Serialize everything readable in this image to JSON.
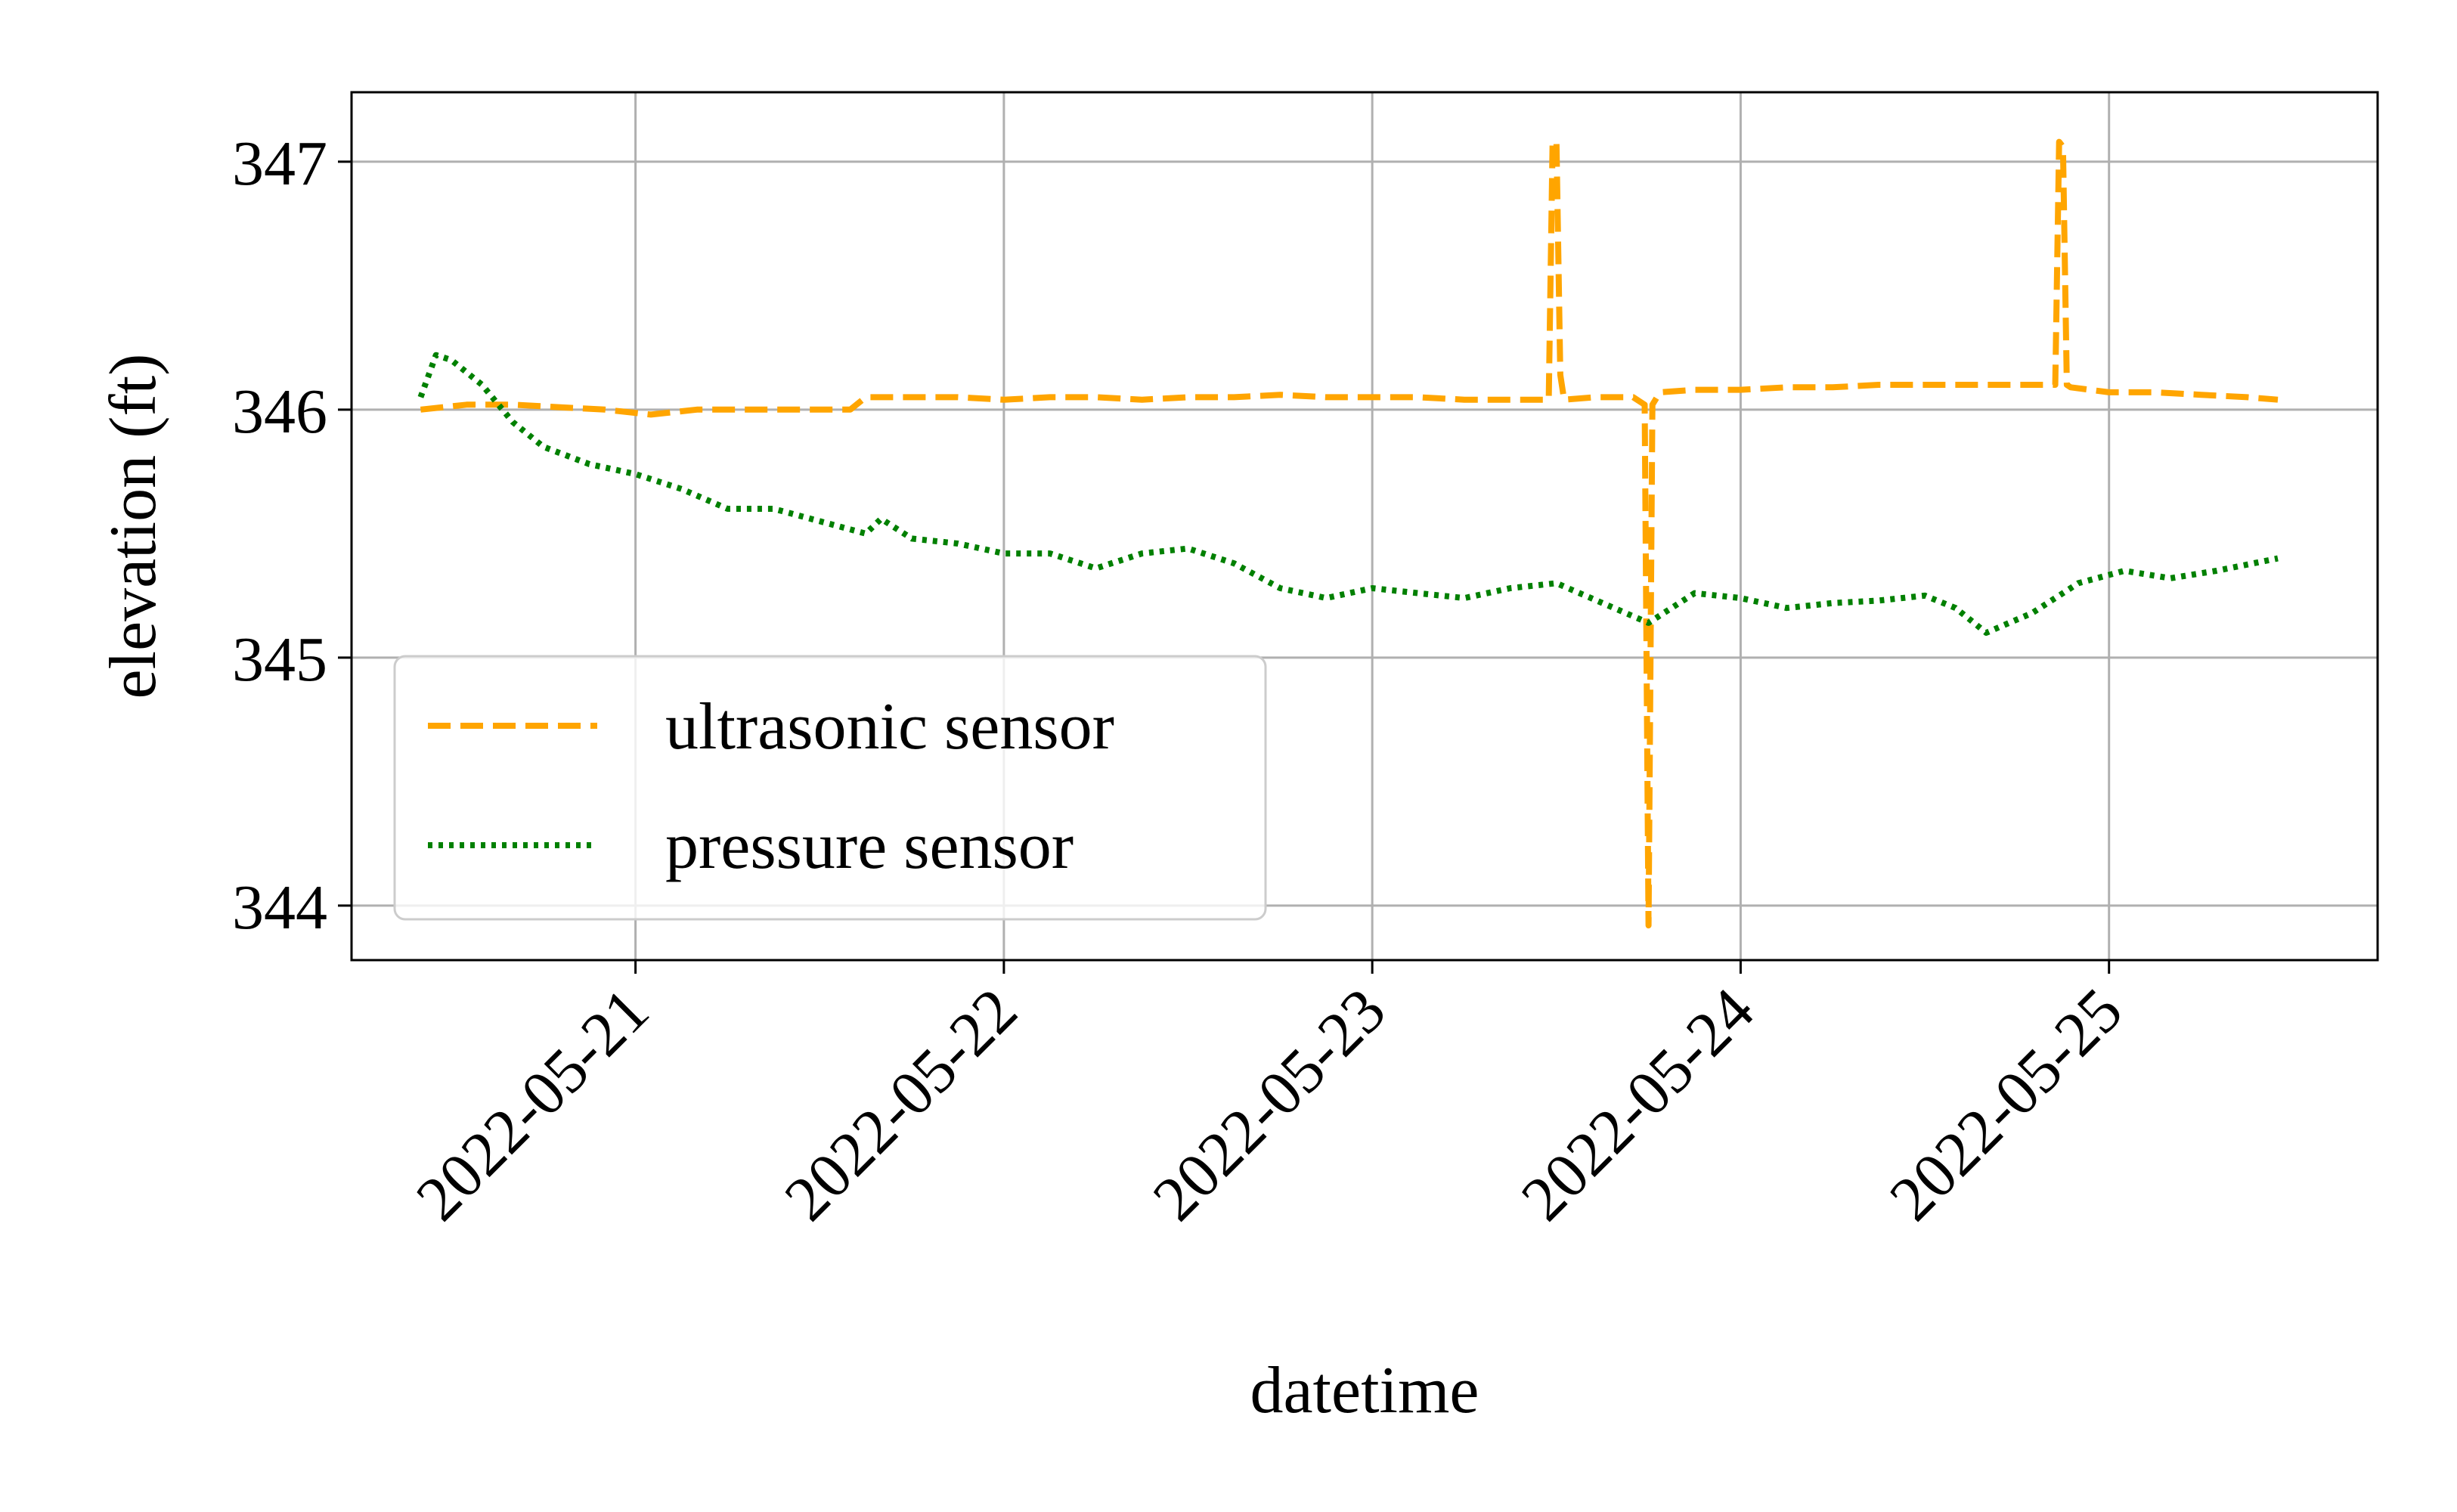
{
  "chart_data": {
    "type": "line",
    "title": "",
    "xlabel": "datetime",
    "ylabel": "elevation (ft)",
    "x_type": "datetime",
    "xlim": [
      "2022-05-20T05:30",
      "2022-05-25T17:30"
    ],
    "ylim": [
      343.78,
      347.28
    ],
    "x_ticks": [
      "2022-05-21",
      "2022-05-22",
      "2022-05-23",
      "2022-05-24",
      "2022-05-25"
    ],
    "y_ticks": [
      344,
      345,
      346,
      347
    ],
    "grid": true,
    "legend_position": "lower-left",
    "series": [
      {
        "name": "ultrasonic sensor",
        "color": "#ffa500",
        "line_style": "dashed",
        "x": [
          "2022-05-20T10:00",
          "2022-05-20T13:00",
          "2022-05-20T16:00",
          "2022-05-20T19:00",
          "2022-05-20T22:00",
          "2022-05-21T01:00",
          "2022-05-21T04:00",
          "2022-05-21T07:00",
          "2022-05-21T10:00",
          "2022-05-21T13:00",
          "2022-05-21T14:00",
          "2022-05-21T15:00",
          "2022-05-21T18:00",
          "2022-05-21T21:00",
          "2022-05-22T00:00",
          "2022-05-22T03:00",
          "2022-05-22T06:00",
          "2022-05-22T09:00",
          "2022-05-22T12:00",
          "2022-05-22T15:00",
          "2022-05-22T18:00",
          "2022-05-22T21:00",
          "2022-05-23T00:00",
          "2022-05-23T03:00",
          "2022-05-23T06:00",
          "2022-05-23T09:00",
          "2022-05-23T11:30",
          "2022-05-23T11:45",
          "2022-05-23T12:00",
          "2022-05-23T12:15",
          "2022-05-23T12:30",
          "2022-05-23T14:30",
          "2022-05-23T17:00",
          "2022-05-23T17:45",
          "2022-05-23T18:00",
          "2022-05-23T18:15",
          "2022-05-23T18:45",
          "2022-05-23T21:00",
          "2022-05-24T00:00",
          "2022-05-24T03:00",
          "2022-05-24T06:00",
          "2022-05-24T09:00",
          "2022-05-24T12:00",
          "2022-05-24T15:00",
          "2022-05-24T18:00",
          "2022-05-24T20:30",
          "2022-05-24T20:45",
          "2022-05-24T21:00",
          "2022-05-24T21:15",
          "2022-05-24T21:30",
          "2022-05-25T00:00",
          "2022-05-25T03:00",
          "2022-05-25T06:00",
          "2022-05-25T09:00",
          "2022-05-25T11:00"
        ],
        "y": [
          346.0,
          346.02,
          346.02,
          346.01,
          346.0,
          345.98,
          346.0,
          346.0,
          346.0,
          346.0,
          346.0,
          346.05,
          346.05,
          346.05,
          346.04,
          346.05,
          346.05,
          346.04,
          346.05,
          346.05,
          346.06,
          346.05,
          346.05,
          346.05,
          346.04,
          346.04,
          346.04,
          347.08,
          347.08,
          346.14,
          346.04,
          346.05,
          346.05,
          346.02,
          343.92,
          346.02,
          346.07,
          346.08,
          346.08,
          346.09,
          346.09,
          346.1,
          346.1,
          346.1,
          346.1,
          346.1,
          347.08,
          347.06,
          346.1,
          346.09,
          346.07,
          346.07,
          346.06,
          346.05,
          346.04
        ]
      },
      {
        "name": "pressure sensor",
        "color": "#008000",
        "line_style": "dotted",
        "x": [
          "2022-05-20T10:00",
          "2022-05-20T11:00",
          "2022-05-20T12:00",
          "2022-05-20T14:00",
          "2022-05-20T16:00",
          "2022-05-20T18:00",
          "2022-05-20T21:00",
          "2022-05-21T00:00",
          "2022-05-21T03:00",
          "2022-05-21T06:00",
          "2022-05-21T09:00",
          "2022-05-21T12:00",
          "2022-05-21T15:00",
          "2022-05-21T16:00",
          "2022-05-21T18:00",
          "2022-05-21T21:00",
          "2022-05-22T00:00",
          "2022-05-22T03:00",
          "2022-05-22T06:00",
          "2022-05-22T09:00",
          "2022-05-22T12:00",
          "2022-05-22T15:00",
          "2022-05-22T18:00",
          "2022-05-22T21:00",
          "2022-05-23T00:00",
          "2022-05-23T03:00",
          "2022-05-23T06:00",
          "2022-05-23T09:00",
          "2022-05-23T12:00",
          "2022-05-23T15:00",
          "2022-05-23T18:00",
          "2022-05-23T21:00",
          "2022-05-24T00:00",
          "2022-05-24T03:00",
          "2022-05-24T06:00",
          "2022-05-24T09:00",
          "2022-05-24T12:00",
          "2022-05-24T14:00",
          "2022-05-24T16:00",
          "2022-05-24T19:00",
          "2022-05-24T22:00",
          "2022-05-25T01:00",
          "2022-05-25T04:00",
          "2022-05-25T07:00",
          "2022-05-25T11:00"
        ],
        "y": [
          346.05,
          346.22,
          346.2,
          346.1,
          345.95,
          345.85,
          345.78,
          345.74,
          345.68,
          345.6,
          345.6,
          345.55,
          345.5,
          345.56,
          345.48,
          345.46,
          345.42,
          345.42,
          345.36,
          345.42,
          345.44,
          345.38,
          345.28,
          345.24,
          345.28,
          345.26,
          345.24,
          345.28,
          345.3,
          345.22,
          345.14,
          345.26,
          345.24,
          345.2,
          345.22,
          345.23,
          345.25,
          345.2,
          345.1,
          345.18,
          345.3,
          345.35,
          345.32,
          345.35,
          345.4
        ]
      }
    ]
  }
}
